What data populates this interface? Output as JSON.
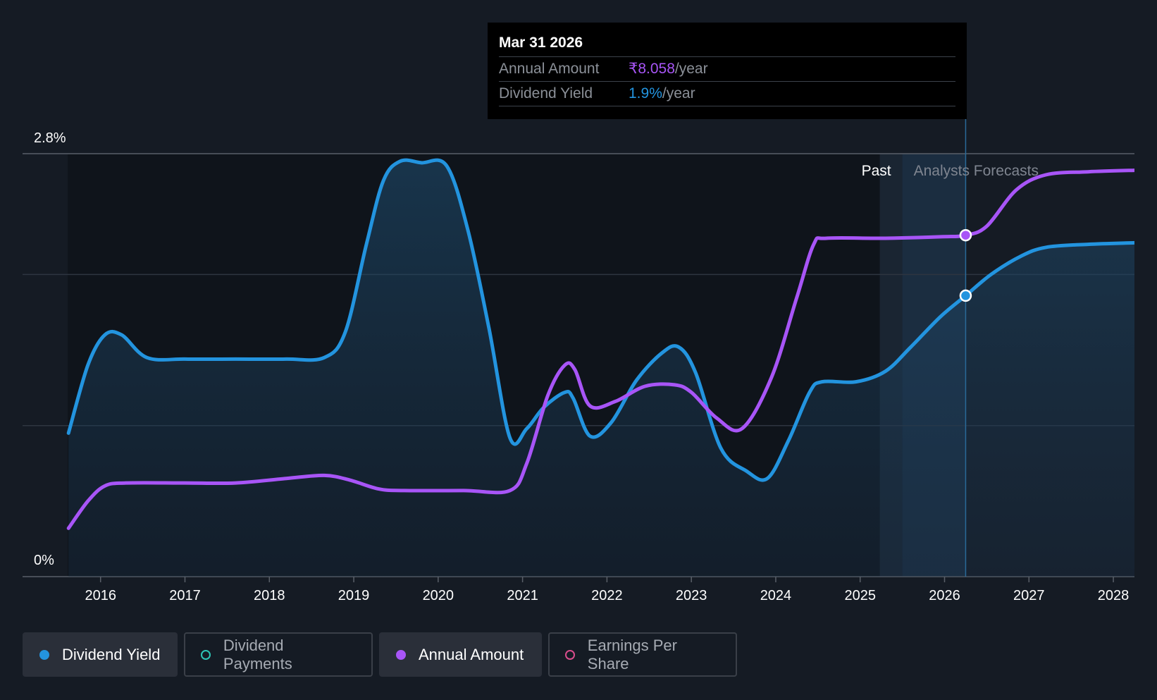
{
  "chart_data": {
    "type": "line",
    "y_axis": {
      "top_label": "2.8%",
      "bottom_label": "0%",
      "ylim": [
        0,
        2.8
      ]
    },
    "x_ticks": [
      "2016",
      "2017",
      "2018",
      "2019",
      "2020",
      "2021",
      "2022",
      "2023",
      "2024",
      "2025",
      "2026",
      "2027",
      "2028"
    ],
    "xlim": [
      2015.61,
      2028.25
    ],
    "regions": {
      "past_label": "Past",
      "forecast_label": "Analysts Forecasts",
      "divider_x": 2025.5
    },
    "highlight_x": 2026.25,
    "series": [
      {
        "name": "Dividend Yield",
        "color": "#2394df",
        "unit": "%",
        "points": [
          [
            2015.62,
            0.95
          ],
          [
            2015.85,
            1.4
          ],
          [
            2016.05,
            1.6
          ],
          [
            2016.25,
            1.6
          ],
          [
            2016.55,
            1.45
          ],
          [
            2017.0,
            1.44
          ],
          [
            2017.6,
            1.44
          ],
          [
            2018.2,
            1.44
          ],
          [
            2018.65,
            1.45
          ],
          [
            2018.9,
            1.62
          ],
          [
            2019.15,
            2.2
          ],
          [
            2019.35,
            2.62
          ],
          [
            2019.55,
            2.75
          ],
          [
            2019.8,
            2.74
          ],
          [
            2020.1,
            2.72
          ],
          [
            2020.35,
            2.3
          ],
          [
            2020.6,
            1.65
          ],
          [
            2020.85,
            0.92
          ],
          [
            2021.05,
            0.98
          ],
          [
            2021.25,
            1.12
          ],
          [
            2021.5,
            1.22
          ],
          [
            2021.6,
            1.18
          ],
          [
            2021.8,
            0.93
          ],
          [
            2022.05,
            1.02
          ],
          [
            2022.35,
            1.3
          ],
          [
            2022.65,
            1.48
          ],
          [
            2022.85,
            1.52
          ],
          [
            2023.05,
            1.35
          ],
          [
            2023.35,
            0.85
          ],
          [
            2023.65,
            0.7
          ],
          [
            2023.9,
            0.65
          ],
          [
            2024.15,
            0.9
          ],
          [
            2024.4,
            1.22
          ],
          [
            2024.55,
            1.29
          ],
          [
            2024.95,
            1.29
          ],
          [
            2025.3,
            1.36
          ],
          [
            2025.6,
            1.52
          ],
          [
            2025.95,
            1.72
          ],
          [
            2026.25,
            1.86
          ],
          [
            2026.55,
            2.0
          ],
          [
            2026.9,
            2.12
          ],
          [
            2027.2,
            2.18
          ],
          [
            2027.7,
            2.2
          ],
          [
            2028.25,
            2.21
          ]
        ]
      },
      {
        "name": "Annual Amount",
        "color": "#a855f7",
        "points": [
          [
            2015.62,
            0.32
          ],
          [
            2015.85,
            0.5
          ],
          [
            2016.05,
            0.6
          ],
          [
            2016.3,
            0.62
          ],
          [
            2017.0,
            0.62
          ],
          [
            2017.6,
            0.62
          ],
          [
            2018.2,
            0.65
          ],
          [
            2018.65,
            0.67
          ],
          [
            2018.95,
            0.64
          ],
          [
            2019.3,
            0.58
          ],
          [
            2019.6,
            0.57
          ],
          [
            2020.3,
            0.57
          ],
          [
            2020.85,
            0.57
          ],
          [
            2021.05,
            0.75
          ],
          [
            2021.3,
            1.2
          ],
          [
            2021.5,
            1.4
          ],
          [
            2021.62,
            1.37
          ],
          [
            2021.8,
            1.13
          ],
          [
            2022.1,
            1.16
          ],
          [
            2022.45,
            1.26
          ],
          [
            2022.8,
            1.27
          ],
          [
            2023.0,
            1.22
          ],
          [
            2023.3,
            1.05
          ],
          [
            2023.6,
            0.98
          ],
          [
            2023.95,
            1.32
          ],
          [
            2024.25,
            1.85
          ],
          [
            2024.45,
            2.2
          ],
          [
            2024.6,
            2.24
          ],
          [
            2025.3,
            2.24
          ],
          [
            2025.95,
            2.25
          ],
          [
            2026.25,
            2.26
          ],
          [
            2026.5,
            2.32
          ],
          [
            2026.85,
            2.56
          ],
          [
            2027.2,
            2.66
          ],
          [
            2027.7,
            2.68
          ],
          [
            2028.25,
            2.69
          ]
        ]
      }
    ],
    "tooltip": {
      "date": "Mar 31 2026",
      "annual_amount_label": "Annual Amount",
      "annual_amount_value": "₹8.058",
      "annual_amount_unit": "/year",
      "dividend_yield_label": "Dividend Yield",
      "dividend_yield_value": "1.9%",
      "dividend_yield_unit": "/year"
    },
    "legend": [
      {
        "label": "Dividend Yield",
        "color": "#2394df",
        "filled": true,
        "active": true
      },
      {
        "label": "Dividend Payments",
        "color": "#2ec4b6",
        "filled": false,
        "active": false
      },
      {
        "label": "Annual Amount",
        "color": "#a855f7",
        "filled": true,
        "active": true
      },
      {
        "label": "Earnings Per Share",
        "color": "#d94d8c",
        "filled": false,
        "active": false
      }
    ]
  }
}
